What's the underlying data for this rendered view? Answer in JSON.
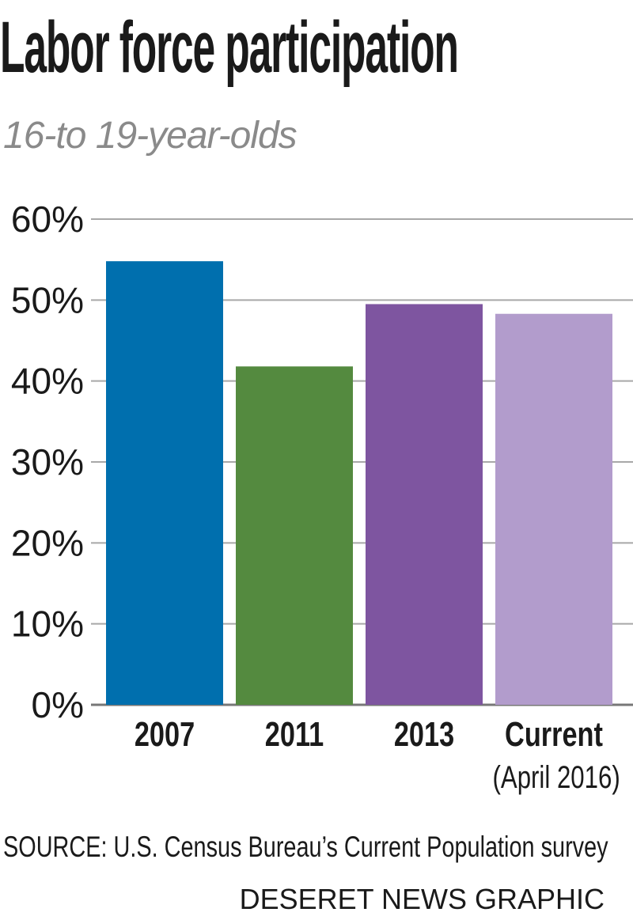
{
  "header": {
    "title": "Labor force participation",
    "subtitle": "16-to 19-year-olds"
  },
  "footer": {
    "source": "SOURCE: U.S. Census Bureau’s Current Population survey",
    "credit": "DESERET NEWS GRAPHIC"
  },
  "chart_data": {
    "type": "bar",
    "title": "Labor force participation",
    "subtitle": "16-to 19-year-olds",
    "categories": [
      "2007",
      "2011",
      "2013",
      "Current"
    ],
    "category_sublabels": [
      "",
      "",
      "",
      "(April 2016)"
    ],
    "values": [
      54.8,
      41.8,
      49.5,
      48.3
    ],
    "colors": [
      "#006fae",
      "#548a3f",
      "#7e55a0",
      "#b29ccc"
    ],
    "yticks": [
      "0%",
      "10%",
      "20%",
      "30%",
      "40%",
      "50%",
      "60%"
    ],
    "ylim": [
      0,
      60
    ],
    "grid": true,
    "legend": "none",
    "xlabel": "",
    "ylabel": ""
  }
}
